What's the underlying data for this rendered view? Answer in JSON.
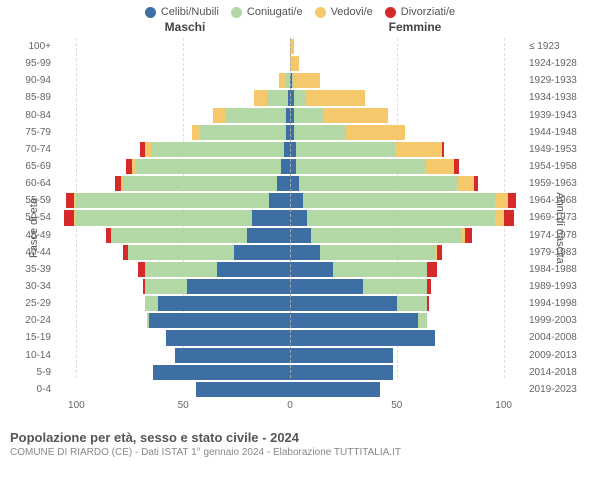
{
  "legend": [
    {
      "label": "Celibi/Nubili",
      "color": "#3d6fa5"
    },
    {
      "label": "Coniugati/e",
      "color": "#b2d8a5"
    },
    {
      "label": "Vedovi/e",
      "color": "#f5c96b"
    },
    {
      "label": "Divorziati/e",
      "color": "#d62a2a"
    }
  ],
  "headers": {
    "male": "Maschi",
    "female": "Femmine"
  },
  "axis_labels": {
    "left": "Fasce di età",
    "right": "Anni di nascita"
  },
  "chart": {
    "type": "population-pyramid",
    "xmax": 110,
    "xticks_left": [
      100,
      50,
      0
    ],
    "xticks_right": [
      0,
      50,
      100
    ],
    "background_color": "#ffffff",
    "grid_color": "#dddddd",
    "centerline_color": "#aaaaaa",
    "segment_keys": [
      "single",
      "married",
      "widowed",
      "divorced"
    ],
    "segment_colors": {
      "single": "#3d6fa5",
      "married": "#b2d8a5",
      "widowed": "#f5c96b",
      "divorced": "#d62a2a"
    },
    "rows": [
      {
        "age": "100+",
        "year": "≤ 1923",
        "m": {
          "single": 0,
          "married": 0,
          "widowed": 0,
          "divorced": 0
        },
        "f": {
          "single": 0,
          "married": 0,
          "widowed": 2,
          "divorced": 0
        }
      },
      {
        "age": "95-99",
        "year": "1924-1928",
        "m": {
          "single": 0,
          "married": 0,
          "widowed": 0,
          "divorced": 0
        },
        "f": {
          "single": 0,
          "married": 0,
          "widowed": 4,
          "divorced": 0
        }
      },
      {
        "age": "90-94",
        "year": "1929-1933",
        "m": {
          "single": 0,
          "married": 2,
          "widowed": 3,
          "divorced": 0
        },
        "f": {
          "single": 1,
          "married": 1,
          "widowed": 12,
          "divorced": 0
        }
      },
      {
        "age": "85-89",
        "year": "1934-1938",
        "m": {
          "single": 1,
          "married": 10,
          "widowed": 6,
          "divorced": 0
        },
        "f": {
          "single": 2,
          "married": 5,
          "widowed": 28,
          "divorced": 0
        }
      },
      {
        "age": "80-84",
        "year": "1939-1943",
        "m": {
          "single": 2,
          "married": 28,
          "widowed": 6,
          "divorced": 0
        },
        "f": {
          "single": 2,
          "married": 14,
          "widowed": 30,
          "divorced": 0
        }
      },
      {
        "age": "75-79",
        "year": "1944-1948",
        "m": {
          "single": 2,
          "married": 40,
          "widowed": 4,
          "divorced": 0
        },
        "f": {
          "single": 2,
          "married": 24,
          "widowed": 28,
          "divorced": 0
        }
      },
      {
        "age": "70-74",
        "year": "1949-1953",
        "m": {
          "single": 3,
          "married": 62,
          "widowed": 3,
          "divorced": 2
        },
        "f": {
          "single": 3,
          "married": 46,
          "widowed": 22,
          "divorced": 1
        }
      },
      {
        "age": "65-69",
        "year": "1954-1958",
        "m": {
          "single": 4,
          "married": 68,
          "widowed": 2,
          "divorced": 3
        },
        "f": {
          "single": 3,
          "married": 60,
          "widowed": 14,
          "divorced": 2
        }
      },
      {
        "age": "60-64",
        "year": "1959-1963",
        "m": {
          "single": 6,
          "married": 72,
          "widowed": 1,
          "divorced": 3
        },
        "f": {
          "single": 4,
          "married": 74,
          "widowed": 8,
          "divorced": 2
        }
      },
      {
        "age": "55-59",
        "year": "1964-1968",
        "m": {
          "single": 10,
          "married": 90,
          "widowed": 1,
          "divorced": 4
        },
        "f": {
          "single": 6,
          "married": 90,
          "widowed": 6,
          "divorced": 4
        }
      },
      {
        "age": "50-54",
        "year": "1969-1973",
        "m": {
          "single": 18,
          "married": 82,
          "widowed": 1,
          "divorced": 5
        },
        "f": {
          "single": 8,
          "married": 88,
          "widowed": 4,
          "divorced": 5
        }
      },
      {
        "age": "45-49",
        "year": "1974-1978",
        "m": {
          "single": 20,
          "married": 64,
          "widowed": 0,
          "divorced": 2
        },
        "f": {
          "single": 10,
          "married": 70,
          "widowed": 2,
          "divorced": 3
        }
      },
      {
        "age": "40-44",
        "year": "1979-1983",
        "m": {
          "single": 26,
          "married": 50,
          "widowed": 0,
          "divorced": 2
        },
        "f": {
          "single": 14,
          "married": 54,
          "widowed": 1,
          "divorced": 2
        }
      },
      {
        "age": "35-39",
        "year": "1984-1988",
        "m": {
          "single": 34,
          "married": 34,
          "widowed": 0,
          "divorced": 3
        },
        "f": {
          "single": 20,
          "married": 44,
          "widowed": 0,
          "divorced": 5
        }
      },
      {
        "age": "30-34",
        "year": "1989-1993",
        "m": {
          "single": 48,
          "married": 20,
          "widowed": 0,
          "divorced": 1
        },
        "f": {
          "single": 34,
          "married": 30,
          "widowed": 0,
          "divorced": 2
        }
      },
      {
        "age": "25-29",
        "year": "1994-1998",
        "m": {
          "single": 62,
          "married": 6,
          "widowed": 0,
          "divorced": 0
        },
        "f": {
          "single": 50,
          "married": 14,
          "widowed": 0,
          "divorced": 1
        }
      },
      {
        "age": "20-24",
        "year": "1999-2003",
        "m": {
          "single": 66,
          "married": 1,
          "widowed": 0,
          "divorced": 0
        },
        "f": {
          "single": 60,
          "married": 4,
          "widowed": 0,
          "divorced": 0
        }
      },
      {
        "age": "15-19",
        "year": "2004-2008",
        "m": {
          "single": 58,
          "married": 0,
          "widowed": 0,
          "divorced": 0
        },
        "f": {
          "single": 68,
          "married": 0,
          "widowed": 0,
          "divorced": 0
        }
      },
      {
        "age": "10-14",
        "year": "2009-2013",
        "m": {
          "single": 54,
          "married": 0,
          "widowed": 0,
          "divorced": 0
        },
        "f": {
          "single": 48,
          "married": 0,
          "widowed": 0,
          "divorced": 0
        }
      },
      {
        "age": "5-9",
        "year": "2014-2018",
        "m": {
          "single": 64,
          "married": 0,
          "widowed": 0,
          "divorced": 0
        },
        "f": {
          "single": 48,
          "married": 0,
          "widowed": 0,
          "divorced": 0
        }
      },
      {
        "age": "0-4",
        "year": "2019-2023",
        "m": {
          "single": 44,
          "married": 0,
          "widowed": 0,
          "divorced": 0
        },
        "f": {
          "single": 42,
          "married": 0,
          "widowed": 0,
          "divorced": 0
        }
      }
    ]
  },
  "footer": {
    "title": "Popolazione per età, sesso e stato civile - 2024",
    "subtitle": "COMUNE DI RIARDO (CE) - Dati ISTAT 1° gennaio 2024 - Elaborazione TUTTITALIA.IT"
  }
}
